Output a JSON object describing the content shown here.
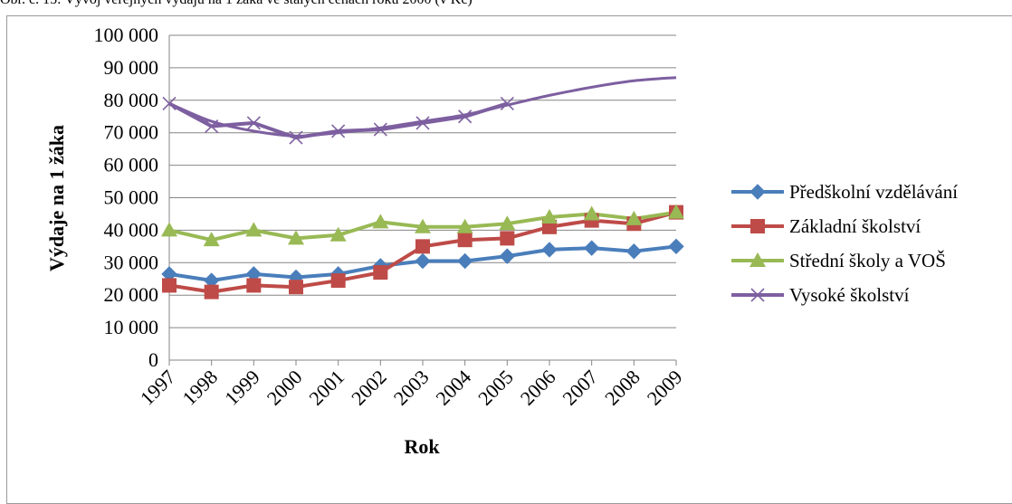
{
  "caption": "Obr. č. 15: Vývoj veřejných výdajů na 1 žáka ve stálých cenách roku 2000 (v Kč)",
  "chart_data": {
    "type": "line",
    "title": "",
    "xlabel": "Rok",
    "ylabel": "Výdaje na 1 žáka",
    "ylim": [
      0,
      100000
    ],
    "yticks": [
      "0",
      "10 000",
      "20 000",
      "30 000",
      "40 000",
      "50 000",
      "60 000",
      "70 000",
      "80 000",
      "90 000",
      "100 000"
    ],
    "categories": [
      "1997",
      "1998",
      "1999",
      "2000",
      "2001",
      "2002",
      "2003",
      "2004",
      "2005",
      "2006",
      "2007",
      "2008",
      "2009"
    ],
    "grid": true,
    "legend": "right",
    "series": [
      {
        "name": "Předškolní vzdělávání",
        "color": "#4a7ebb",
        "marker": "diamond",
        "values": [
          26500,
          24500,
          26500,
          25500,
          26500,
          29000,
          30500,
          30500,
          32000,
          34000,
          34500,
          33500,
          35000
        ]
      },
      {
        "name": "Základní školství",
        "color": "#be4b48",
        "marker": "square",
        "values": [
          23000,
          21000,
          23000,
          22500,
          24500,
          27000,
          35000,
          37000,
          37500,
          41000,
          43000,
          42000,
          45500
        ]
      },
      {
        "name": "Střední školy a VOŠ",
        "color": "#98b954",
        "marker": "triangle",
        "values": [
          40000,
          37000,
          40000,
          37500,
          38500,
          42500,
          41000,
          41000,
          42000,
          44000,
          45000,
          43500,
          45500
        ]
      },
      {
        "name": "Vysoké školství",
        "color": "#7d5fa0",
        "marker": "x",
        "values": [
          79000,
          72000,
          73000,
          68500,
          70500,
          71000,
          73000,
          75000,
          79000,
          null,
          null,
          null,
          null
        ]
      }
    ],
    "trendline": {
      "series": "Vysoké školství",
      "color": "#7d5fa0",
      "values": [
        79000,
        73500,
        70500,
        69000,
        70000,
        71500,
        73500,
        75500,
        78500,
        81500,
        84000,
        86000,
        87000
      ]
    }
  }
}
